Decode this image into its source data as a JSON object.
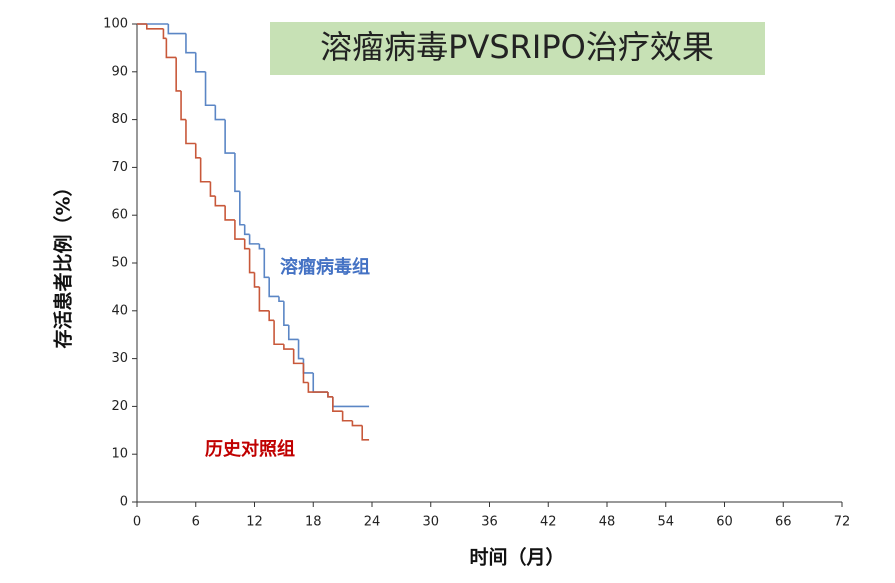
{
  "chart_data": {
    "type": "step",
    "title": "溶瘤病毒PVSRIPO治疗效果",
    "x_label": "时间（月）",
    "y_label": "存活患者比例（%）",
    "xlim": [
      0,
      72
    ],
    "xticks": [
      0,
      6,
      12,
      18,
      24,
      30,
      36,
      42,
      48,
      54,
      60,
      66,
      72
    ],
    "ylim": [
      0,
      100
    ],
    "yticks": [
      0,
      10,
      20,
      30,
      40,
      50,
      60,
      70,
      80,
      90,
      100
    ],
    "series": [
      {
        "name": "溶瘤病毒组",
        "color": "#5b86c5",
        "x": [
          0,
          3.2,
          5,
          6,
          7,
          8,
          9,
          10,
          10.5,
          11,
          11.5,
          12.5,
          13,
          13.5,
          14.5,
          15,
          15.5,
          16.5,
          17,
          18,
          19.5,
          20,
          23.7
        ],
        "values": [
          100,
          98,
          94,
          90,
          83,
          80,
          73,
          65,
          58,
          56,
          54,
          53,
          47,
          43,
          42,
          37,
          34,
          30,
          27,
          23,
          22,
          20,
          20
        ]
      },
      {
        "name": "历史对照组",
        "color": "#c8583a",
        "x": [
          0,
          1,
          2.7,
          3,
          4,
          4.5,
          5,
          6,
          6.5,
          7.5,
          8,
          9,
          10,
          11,
          11.5,
          12,
          12.5,
          13.5,
          14,
          15,
          16,
          17,
          17.5,
          19.5,
          20,
          21,
          22,
          23,
          23.7
        ],
        "values": [
          100,
          99,
          97,
          93,
          86,
          80,
          75,
          72,
          67,
          64,
          62,
          59,
          55,
          53,
          48,
          45,
          40,
          38,
          33,
          32,
          29,
          25,
          23,
          22,
          19,
          17,
          16,
          13,
          13
        ]
      }
    ]
  }
}
